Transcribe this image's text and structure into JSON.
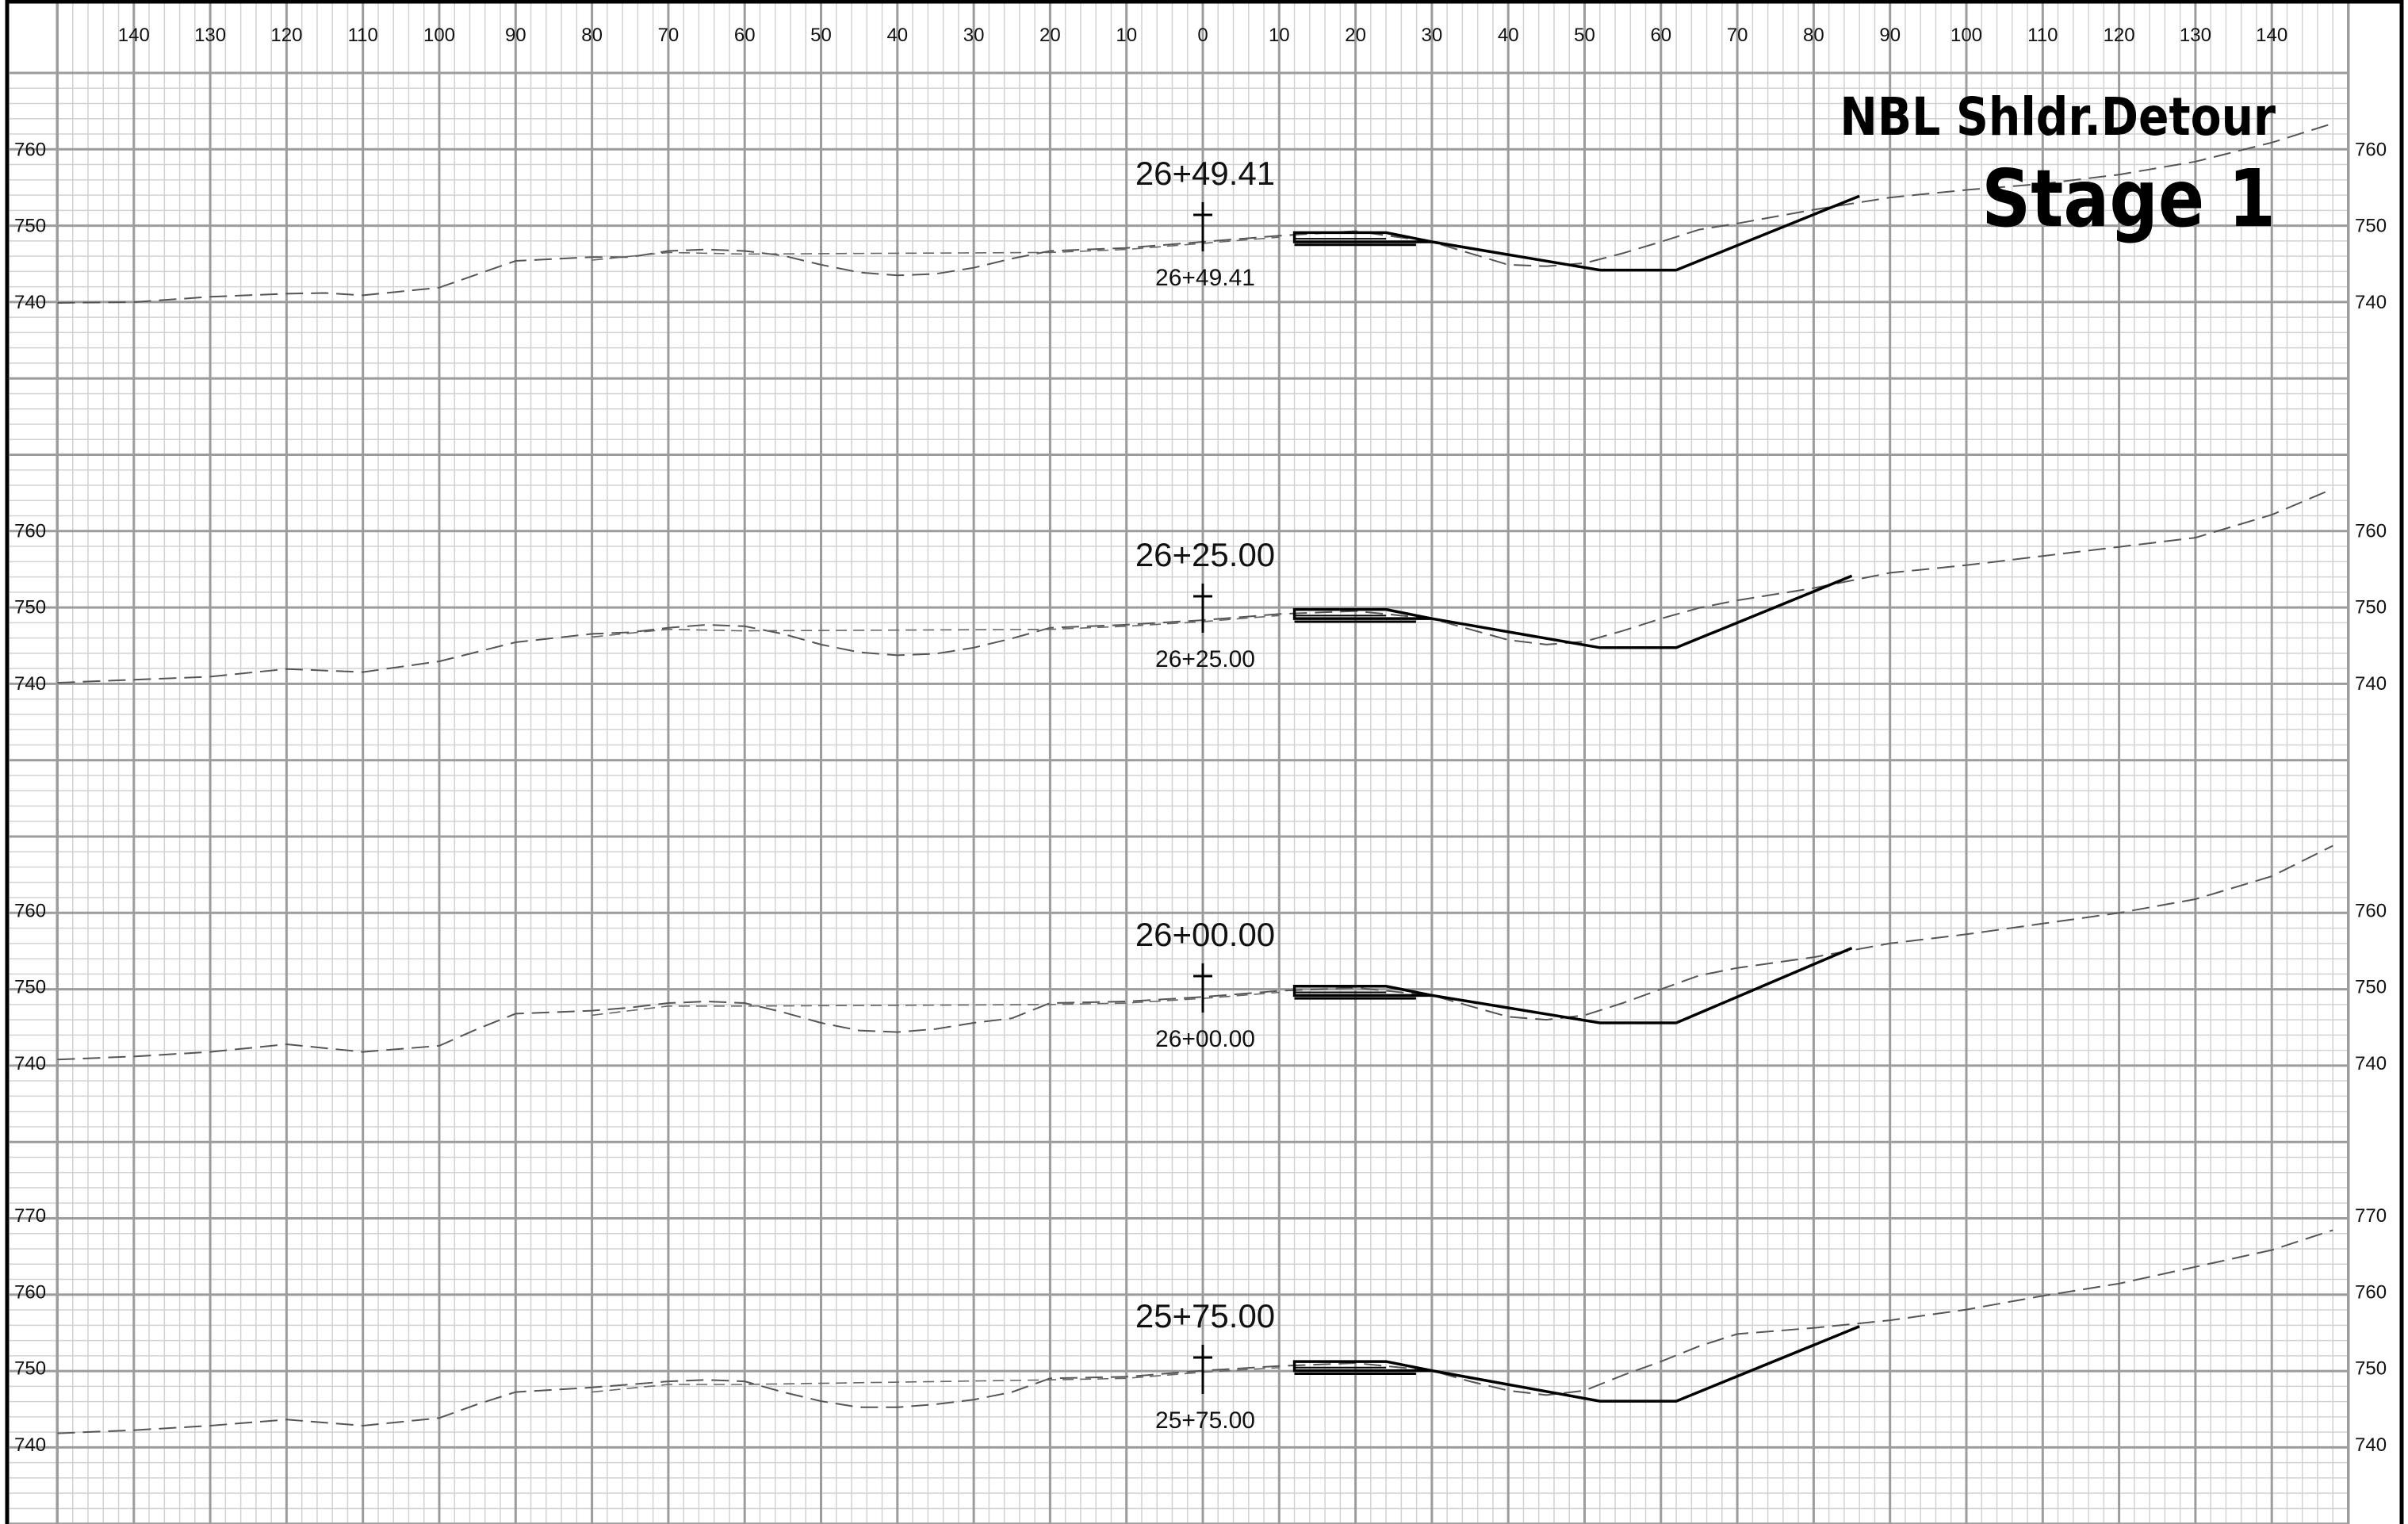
{
  "sheet": {
    "title_line1": "NBL Shldr.Detour",
    "title_line2": "Stage 1"
  },
  "offset_ticks": [
    "140",
    "130",
    "120",
    "110",
    "100",
    "90",
    "80",
    "70",
    "60",
    "50",
    "40",
    "30",
    "20",
    "10",
    "0",
    "10",
    "20",
    "30",
    "40",
    "50",
    "60",
    "70",
    "80",
    "90",
    "100",
    "110",
    "120",
    "130",
    "140"
  ],
  "offset_range": [
    -150,
    150
  ],
  "sections": [
    {
      "station": "26+49.41",
      "elev_labels": [
        "760",
        "750",
        "740"
      ],
      "existing_ground": [
        [
          -150,
          740.0
        ],
        [
          -140,
          740.1
        ],
        [
          -130,
          740.8
        ],
        [
          -120,
          741.2
        ],
        [
          -115,
          741.3
        ],
        [
          -110,
          741.0
        ],
        [
          -100,
          742.0
        ],
        [
          -90,
          745.5
        ],
        [
          -80,
          746.0
        ],
        [
          -75,
          746.0
        ],
        [
          -70,
          746.8
        ],
        [
          -65,
          747.0
        ],
        [
          -60,
          746.8
        ],
        [
          -55,
          746.2
        ],
        [
          -50,
          745.0
        ],
        [
          -45,
          744.0
        ],
        [
          -40,
          743.6
        ],
        [
          -35,
          743.8
        ],
        [
          -30,
          744.6
        ],
        [
          -25,
          745.8
        ],
        [
          -20,
          746.8
        ],
        [
          -10,
          747.2
        ],
        [
          0,
          748.0
        ],
        [
          10,
          748.8
        ],
        [
          20,
          749.4
        ],
        [
          30,
          748.0
        ],
        [
          35,
          746.5
        ],
        [
          40,
          745.0
        ],
        [
          45,
          744.8
        ],
        [
          50,
          745.2
        ],
        [
          55,
          746.5
        ],
        [
          60,
          748.0
        ],
        [
          65,
          749.6
        ],
        [
          70,
          750.4
        ],
        [
          80,
          752.2
        ],
        [
          90,
          753.8
        ],
        [
          100,
          754.8
        ],
        [
          110,
          755.6
        ],
        [
          120,
          756.8
        ],
        [
          130,
          758.5
        ],
        [
          140,
          761.0
        ],
        [
          148,
          763.5
        ]
      ],
      "secondary_ground": [
        [
          -80,
          745.6
        ],
        [
          -70,
          746.6
        ],
        [
          -60,
          746.4
        ],
        [
          -20,
          746.6
        ],
        [
          -10,
          747.0
        ],
        [
          0,
          747.8
        ],
        [
          10,
          748.6
        ]
      ],
      "proposed_template": [
        [
          30,
          748.0
        ],
        [
          52,
          744.3
        ],
        [
          62,
          744.3
        ],
        [
          86,
          754.0
        ]
      ],
      "pavement_offsets": [
        12,
        30
      ]
    },
    {
      "station": "26+25.00",
      "elev_labels": [
        "760",
        "750",
        "740"
      ],
      "existing_ground": [
        [
          -150,
          740.2
        ],
        [
          -140,
          740.6
        ],
        [
          -130,
          741.0
        ],
        [
          -120,
          742.0
        ],
        [
          -110,
          741.6
        ],
        [
          -100,
          743.0
        ],
        [
          -90,
          745.5
        ],
        [
          -80,
          746.6
        ],
        [
          -75,
          746.8
        ],
        [
          -70,
          747.4
        ],
        [
          -65,
          747.8
        ],
        [
          -60,
          747.6
        ],
        [
          -55,
          746.6
        ],
        [
          -50,
          745.2
        ],
        [
          -45,
          744.2
        ],
        [
          -40,
          743.8
        ],
        [
          -35,
          744.0
        ],
        [
          -30,
          744.8
        ],
        [
          -25,
          746.0
        ],
        [
          -20,
          747.4
        ],
        [
          -10,
          747.8
        ],
        [
          0,
          748.4
        ],
        [
          10,
          749.2
        ],
        [
          20,
          749.6
        ],
        [
          30,
          748.6
        ],
        [
          35,
          747.2
        ],
        [
          40,
          745.8
        ],
        [
          45,
          745.2
        ],
        [
          50,
          745.6
        ],
        [
          55,
          747.0
        ],
        [
          60,
          748.6
        ],
        [
          65,
          750.0
        ],
        [
          70,
          751.0
        ],
        [
          80,
          752.6
        ],
        [
          90,
          754.6
        ],
        [
          100,
          755.6
        ],
        [
          110,
          756.8
        ],
        [
          120,
          758.0
        ],
        [
          130,
          759.2
        ],
        [
          140,
          762.2
        ],
        [
          148,
          765.6
        ]
      ],
      "secondary_ground": [
        [
          -80,
          746.2
        ],
        [
          -70,
          747.2
        ],
        [
          -60,
          747.0
        ],
        [
          -20,
          747.2
        ],
        [
          -10,
          747.6
        ],
        [
          0,
          748.2
        ],
        [
          10,
          749.0
        ]
      ],
      "proposed_template": [
        [
          30,
          748.6
        ],
        [
          52,
          744.8
        ],
        [
          62,
          744.8
        ],
        [
          85,
          754.2
        ]
      ],
      "pavement_offsets": [
        12,
        30
      ]
    },
    {
      "station": "26+00.00",
      "elev_labels": [
        "760",
        "750",
        "740"
      ],
      "existing_ground": [
        [
          -150,
          740.6
        ],
        [
          -140,
          741.0
        ],
        [
          -130,
          741.6
        ],
        [
          -120,
          742.6
        ],
        [
          -110,
          741.6
        ],
        [
          -100,
          742.4
        ],
        [
          -95,
          744.6
        ],
        [
          -90,
          746.6
        ],
        [
          -80,
          747.0
        ],
        [
          -75,
          747.4
        ],
        [
          -70,
          748.0
        ],
        [
          -65,
          748.2
        ],
        [
          -60,
          748.0
        ],
        [
          -55,
          746.8
        ],
        [
          -50,
          745.4
        ],
        [
          -45,
          744.4
        ],
        [
          -40,
          744.2
        ],
        [
          -35,
          744.6
        ],
        [
          -30,
          745.4
        ],
        [
          -25,
          746.0
        ],
        [
          -20,
          748.0
        ],
        [
          -10,
          748.2
        ],
        [
          0,
          748.8
        ],
        [
          10,
          749.6
        ],
        [
          20,
          750.0
        ],
        [
          30,
          749.0
        ],
        [
          35,
          747.6
        ],
        [
          40,
          746.2
        ],
        [
          45,
          745.8
        ],
        [
          50,
          746.4
        ],
        [
          55,
          748.0
        ],
        [
          60,
          749.8
        ],
        [
          65,
          751.6
        ],
        [
          70,
          752.6
        ],
        [
          80,
          754.0
        ],
        [
          90,
          755.8
        ],
        [
          100,
          757.0
        ],
        [
          110,
          758.4
        ],
        [
          120,
          759.8
        ],
        [
          130,
          761.6
        ],
        [
          140,
          764.6
        ],
        [
          148,
          768.6
        ]
      ],
      "secondary_ground": [
        [
          -80,
          746.4
        ],
        [
          -70,
          747.6
        ],
        [
          -65,
          747.6
        ],
        [
          -60,
          747.6
        ],
        [
          -20,
          747.8
        ],
        [
          -10,
          748.0
        ],
        [
          0,
          748.6
        ],
        [
          10,
          749.4
        ]
      ],
      "proposed_template": [
        [
          30,
          749.0
        ],
        [
          52,
          745.4
        ],
        [
          62,
          745.4
        ],
        [
          85,
          755.2
        ]
      ],
      "pavement_offsets": [
        12,
        30
      ]
    },
    {
      "station": "25+75.00",
      "elev_labels": [
        "770",
        "760",
        "750",
        "740"
      ],
      "existing_ground": [
        [
          -150,
          741.6
        ],
        [
          -140,
          742.0
        ],
        [
          -130,
          742.6
        ],
        [
          -120,
          743.4
        ],
        [
          -110,
          742.6
        ],
        [
          -100,
          743.6
        ],
        [
          -95,
          745.4
        ],
        [
          -90,
          747.0
        ],
        [
          -80,
          747.6
        ],
        [
          -75,
          748.0
        ],
        [
          -70,
          748.4
        ],
        [
          -65,
          748.6
        ],
        [
          -60,
          748.4
        ],
        [
          -55,
          747.0
        ],
        [
          -50,
          745.8
        ],
        [
          -45,
          745.0
        ],
        [
          -40,
          745.0
        ],
        [
          -35,
          745.4
        ],
        [
          -30,
          746.0
        ],
        [
          -25,
          747.0
        ],
        [
          -20,
          748.8
        ],
        [
          -10,
          749.0
        ],
        [
          0,
          749.8
        ],
        [
          10,
          750.4
        ],
        [
          20,
          750.8
        ],
        [
          30,
          749.8
        ],
        [
          35,
          748.4
        ],
        [
          40,
          747.2
        ],
        [
          45,
          746.6
        ],
        [
          50,
          747.2
        ],
        [
          55,
          749.2
        ],
        [
          60,
          751.0
        ],
        [
          65,
          753.0
        ],
        [
          70,
          754.6
        ],
        [
          80,
          755.4
        ],
        [
          90,
          756.4
        ],
        [
          100,
          757.8
        ],
        [
          110,
          759.6
        ],
        [
          120,
          761.2
        ],
        [
          130,
          763.4
        ],
        [
          140,
          765.6
        ],
        [
          148,
          768.2
        ]
      ],
      "secondary_ground": [
        [
          -80,
          747.0
        ],
        [
          -70,
          748.0
        ],
        [
          -65,
          748.0
        ],
        [
          -60,
          748.0
        ],
        [
          -20,
          748.6
        ],
        [
          -10,
          748.8
        ],
        [
          0,
          749.6
        ],
        [
          10,
          750.2
        ]
      ],
      "proposed_template": [
        [
          30,
          749.8
        ],
        [
          52,
          745.8
        ],
        [
          62,
          745.8
        ],
        [
          86,
          755.6
        ]
      ],
      "pavement_offsets": [
        12,
        30
      ]
    }
  ]
}
